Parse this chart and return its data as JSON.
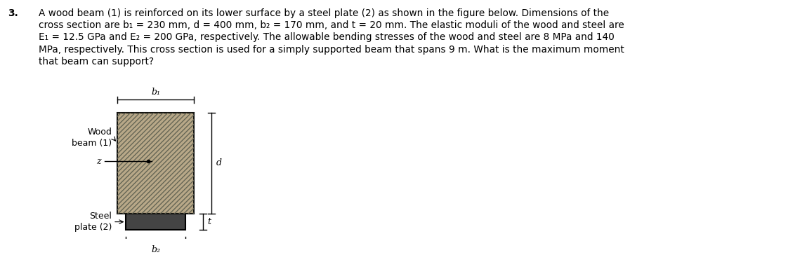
{
  "problem_number": "3.",
  "line1": "A wood beam (1) is reinforced on its lower surface by a steel plate (2) as shown in the figure below. Dimensions of the",
  "line2": "cross section are b₁ = 230 mm, d = 400 mm, b₂ = 170 mm, and t = 20 mm. The elastic moduli of the wood and steel are",
  "line3": "E₁ = 12.5 GPa and E₂ = 200 GPa, respectively. The allowable bending stresses of the wood and steel are 8 MPa and 140",
  "line4": "MPa, respectively. This cross section is used for a simply supported beam that spans 9 m. What is the maximum moment",
  "line5": "that beam can support?",
  "label_wood": "Wood\nbeam (1)",
  "label_steel": "Steel\nplate (2)",
  "label_b1": "b₁",
  "label_b2": "b₂",
  "label_d": "d",
  "label_t": "t",
  "label_z": "z",
  "wood_facecolor": "#b8a888",
  "wood_edgecolor": "#000000",
  "steel_facecolor": "#444444",
  "steel_edgecolor": "#000000",
  "background_color": "#ffffff",
  "text_color": "#000000",
  "fontsize_body": 9.8,
  "fontsize_labels": 9.0,
  "fontsize_dim": 9.0
}
